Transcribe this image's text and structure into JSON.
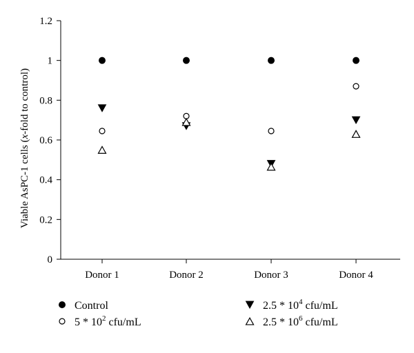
{
  "chart_data": {
    "type": "scatter",
    "categories": [
      "Donor 1",
      "Donor 2",
      "Donor 3",
      "Donor 4"
    ],
    "ylabel": {
      "before": "Viable AsPC-1 cells (",
      "italic": "x",
      "after": "-fold to control)"
    },
    "ylim": [
      0,
      1.2
    ],
    "yticks": [
      "0",
      "0.2",
      "0.4",
      "0.6",
      "0.8",
      "1",
      "1.2"
    ],
    "grid": false,
    "legend_position": "bottom",
    "series": [
      {
        "name": "Control",
        "label": {
          "base": "Control",
          "sup": "",
          "unit": ""
        },
        "marker": "circle-filled",
        "values": [
          1.0,
          1.0,
          1.0,
          1.0
        ]
      },
      {
        "name": "5 * 10^2 cfu/mL",
        "label": {
          "base": "5 * 10",
          "sup": "2",
          "unit": " cfu/mL"
        },
        "marker": "circle-open",
        "values": [
          0.645,
          0.72,
          0.645,
          0.87
        ]
      },
      {
        "name": "2.5 * 10^4 cfu/mL",
        "label": {
          "base": "2.5 * 10",
          "sup": "4",
          "unit": " cfu/mL"
        },
        "marker": "triangle-down-filled",
        "values": [
          0.76,
          0.67,
          0.48,
          0.7
        ]
      },
      {
        "name": "2.5 * 10^6 cfu/mL",
        "label": {
          "base": "2.5 * 10",
          "sup": "6",
          "unit": " cfu/mL"
        },
        "marker": "triangle-up-open",
        "values": [
          0.55,
          0.69,
          0.465,
          0.63
        ]
      }
    ]
  }
}
